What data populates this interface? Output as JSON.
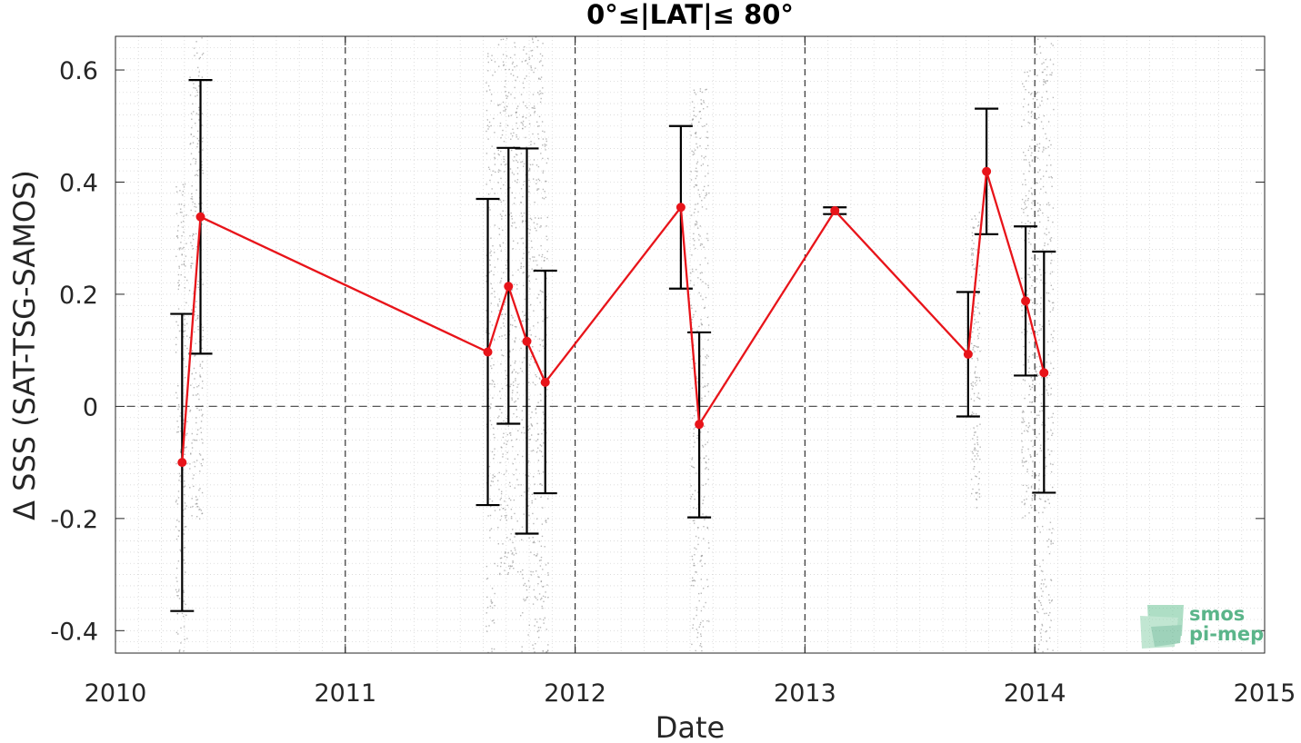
{
  "chart_data": {
    "type": "line",
    "title": "0°≤|LAT|≤ 80°",
    "xlabel": "Date",
    "ylabel": "Δ SSS (SAT-TSG-SAMOS)",
    "xlim": [
      2010,
      2015
    ],
    "ylim": [
      -0.44,
      0.66
    ],
    "x_ticks": [
      "2010",
      "2011",
      "2012",
      "2013",
      "2014",
      "2015"
    ],
    "y_ticks": [
      "-0.4",
      "-0.2",
      "0",
      "0.2",
      "0.4",
      "0.6"
    ],
    "grid": "minor dotted grid on; vertical dashed lines at year boundaries; horizontal dashed line at 0",
    "series": [
      {
        "color": "#e8141a",
        "points": [
          {
            "x": 2010.29,
            "y": -0.1,
            "lo": -0.365,
            "hi": 0.165
          },
          {
            "x": 2010.37,
            "y": 0.338,
            "lo": 0.094,
            "hi": 0.582
          },
          {
            "x": 2011.62,
            "y": 0.097,
            "lo": -0.176,
            "hi": 0.37
          },
          {
            "x": 2011.71,
            "y": 0.214,
            "lo": -0.031,
            "hi": 0.461
          },
          {
            "x": 2011.79,
            "y": 0.116,
            "lo": -0.227,
            "hi": 0.46
          },
          {
            "x": 2011.87,
            "y": 0.043,
            "lo": -0.155,
            "hi": 0.242
          },
          {
            "x": 2012.46,
            "y": 0.355,
            "lo": 0.21,
            "hi": 0.5
          },
          {
            "x": 2012.54,
            "y": -0.032,
            "lo": -0.198,
            "hi": 0.132
          },
          {
            "x": 2013.13,
            "y": 0.349,
            "lo": 0.343,
            "hi": 0.355
          },
          {
            "x": 2013.71,
            "y": 0.093,
            "lo": -0.018,
            "hi": 0.204
          },
          {
            "x": 2013.79,
            "y": 0.419,
            "lo": 0.307,
            "hi": 0.531
          },
          {
            "x": 2013.96,
            "y": 0.188,
            "lo": 0.055,
            "hi": 0.321
          },
          {
            "x": 2014.04,
            "y": 0.06,
            "lo": -0.154,
            "hi": 0.276
          }
        ]
      }
    ],
    "scatter_color": "#9a9a9a",
    "scatter_clusters": [
      {
        "x0": 2010.26,
        "x1": 2010.31,
        "y_lo": -0.44,
        "y_hi": 0.4
      },
      {
        "x0": 2010.32,
        "x1": 2010.38,
        "y_lo": -0.2,
        "y_hi": 0.66
      },
      {
        "x0": 2011.61,
        "x1": 2011.65,
        "y_lo": -0.44,
        "y_hi": 0.66
      },
      {
        "x0": 2011.66,
        "x1": 2011.75,
        "y_lo": -0.3,
        "y_hi": 0.66
      },
      {
        "x0": 2011.76,
        "x1": 2011.86,
        "y_lo": -0.44,
        "y_hi": 0.66
      },
      {
        "x0": 2011.86,
        "x1": 2011.88,
        "y_lo": -0.44,
        "y_hi": 0.5
      },
      {
        "x0": 2012.5,
        "x1": 2012.58,
        "y_lo": -0.44,
        "y_hi": 0.57
      },
      {
        "x0": 2013.72,
        "x1": 2013.76,
        "y_lo": -0.18,
        "y_hi": 0.35
      },
      {
        "x0": 2013.94,
        "x1": 2013.99,
        "y_lo": -0.2,
        "y_hi": 0.6
      },
      {
        "x0": 2014.0,
        "x1": 2014.08,
        "y_lo": -0.44,
        "y_hi": 0.66
      }
    ]
  },
  "logo": {
    "line1": "smos",
    "line2": "pi-mep",
    "color": "#5bb58a"
  }
}
